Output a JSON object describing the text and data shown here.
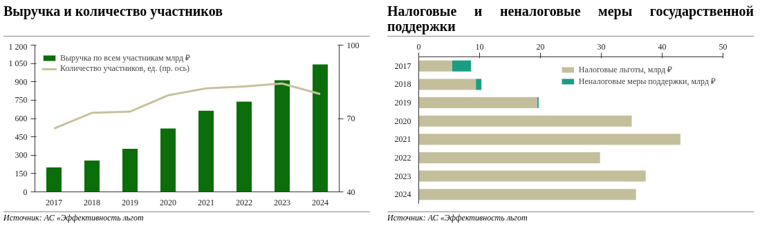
{
  "chart_data": [
    {
      "type": "bar",
      "title": "Выручка и количество участников",
      "categories": [
        "2017",
        "2018",
        "2019",
        "2020",
        "2021",
        "2022",
        "2023",
        "2024"
      ],
      "series": [
        {
          "name": "Выручка по всем участникам млрд ₽",
          "color": "#0b6e0b",
          "values": [
            200,
            256,
            352,
            518,
            664,
            738,
            912,
            1042
          ]
        },
        {
          "name": "Количество участников, ед. (пр. ось)",
          "type": "line",
          "axis": "y2",
          "color": "#c8c19c",
          "values": [
            65.9,
            72.3,
            72.8,
            79.5,
            82.3,
            83.1,
            84.3,
            80.0
          ]
        }
      ],
      "ylim": [
        0,
        1200
      ],
      "yticks": [
        0,
        150,
        300,
        450,
        600,
        750,
        900,
        {
          "value": 1050,
          "label": "1 050"
        },
        {
          "value": 1200,
          "label": "1 200"
        }
      ],
      "y2lim": [
        40,
        100
      ],
      "y2ticks": [
        40,
        70,
        100
      ],
      "legend": "top left",
      "annotations": [
        "Источник: АС «Эффективность льгот"
      ]
    },
    {
      "type": "bar",
      "title": "Налоговые и неналоговые меры государственной поддержки",
      "orientation": "horizontal",
      "stacked": true,
      "categories": [
        "2017",
        "2018",
        "2019",
        "2020",
        "2021",
        "2022",
        "2023",
        "2024"
      ],
      "series": [
        {
          "name": "Налоговые льготы, млрд ₽",
          "color": "#c4bf9b",
          "values": [
            5.5,
            9.4,
            19.5,
            35.0,
            43.0,
            29.8,
            37.3,
            35.7
          ]
        },
        {
          "name": "Неналоговые меры поддержки, млрд ₽",
          "color": "#1a9e82",
          "values": [
            3.1,
            0.9,
            0.2,
            0,
            0,
            0,
            0,
            0
          ]
        }
      ],
      "xlim": [
        0,
        50
      ],
      "xticks": [
        0,
        10,
        20,
        30,
        40,
        50
      ],
      "legend": "top right",
      "annotations": [
        "Источник: АС «Эффективность льгот"
      ]
    }
  ]
}
